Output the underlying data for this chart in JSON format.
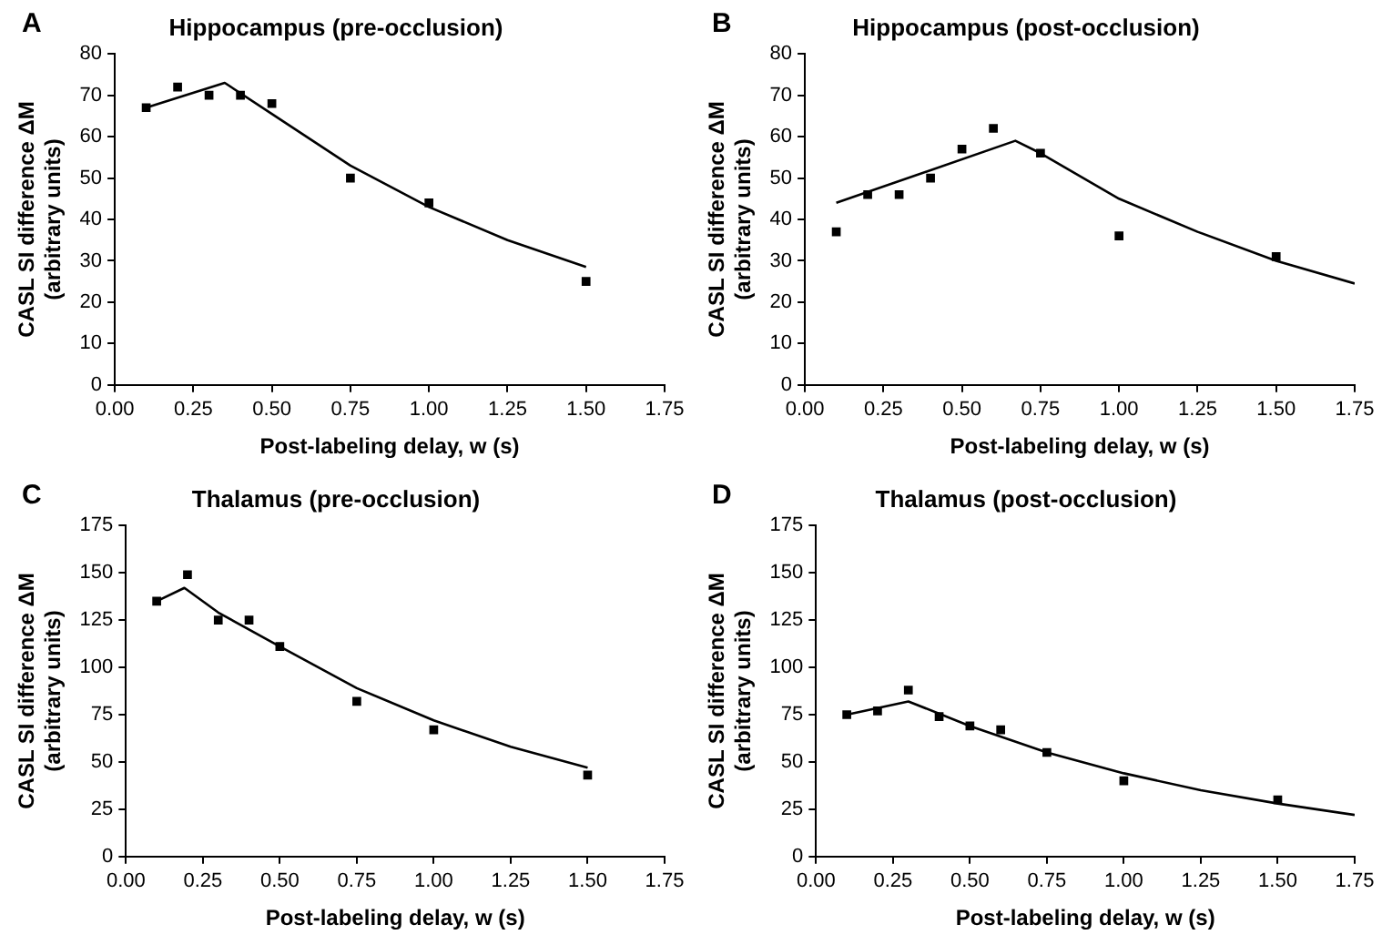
{
  "chart_data": [
    {
      "type": "scatter",
      "title": "Hippocampus (pre-occlusion)",
      "xlabel": "Post-labeling delay, w (s)",
      "ylabel": "CASL SI difference ΔM\n(arbitrary units)",
      "annotations": [
        "A"
      ],
      "xlim": [
        0,
        1.75
      ],
      "xticks": [
        {
          "value": 0,
          "label": "0.00"
        },
        {
          "value": 0.25,
          "label": "0.25"
        },
        {
          "value": 0.5,
          "label": "0.50"
        },
        {
          "value": 0.75,
          "label": "0.75"
        },
        {
          "value": 1,
          "label": "1.00"
        },
        {
          "value": 1.25,
          "label": "1.25"
        },
        {
          "value": 1.5,
          "label": "1.50"
        },
        {
          "value": 1.75,
          "label": "1.75"
        }
      ],
      "ylim": [
        0,
        80
      ],
      "yticks": [
        0,
        10,
        20,
        30,
        40,
        50,
        60,
        70,
        80
      ],
      "grid": false,
      "legend": false,
      "series": [
        {
          "type": "scatter",
          "marker": "square",
          "color": "#000000",
          "x": [
            0.1,
            0.2,
            0.3,
            0.4,
            0.5,
            0.75,
            1.0,
            1.5
          ],
          "values": [
            67,
            72,
            70,
            70,
            68,
            50,
            44,
            25
          ]
        },
        {
          "type": "line",
          "marker": "none",
          "line_style": "solid",
          "color": "#000000",
          "x": [
            0.1,
            0.35,
            0.5,
            0.75,
            1.0,
            1.25,
            1.5
          ],
          "values": [
            67,
            73,
            65.5,
            53,
            43,
            35,
            28.5
          ]
        }
      ]
    },
    {
      "type": "scatter",
      "title": "Hippocampus (post-occlusion)",
      "xlabel": "Post-labeling delay, w (s)",
      "ylabel": "CASL SI difference ΔM\n(arbitrary units)",
      "annotations": [
        "B"
      ],
      "xlim": [
        0,
        1.75
      ],
      "xticks": [
        {
          "value": 0,
          "label": "0.00"
        },
        {
          "value": 0.25,
          "label": "0.25"
        },
        {
          "value": 0.5,
          "label": "0.50"
        },
        {
          "value": 0.75,
          "label": "0.75"
        },
        {
          "value": 1,
          "label": "1.00"
        },
        {
          "value": 1.25,
          "label": "1.25"
        },
        {
          "value": 1.5,
          "label": "1.50"
        },
        {
          "value": 1.75,
          "label": "1.75"
        }
      ],
      "ylim": [
        0,
        80
      ],
      "yticks": [
        0,
        10,
        20,
        30,
        40,
        50,
        60,
        70,
        80
      ],
      "grid": false,
      "legend": false,
      "series": [
        {
          "type": "scatter",
          "marker": "square",
          "color": "#000000",
          "x": [
            0.1,
            0.2,
            0.3,
            0.4,
            0.5,
            0.6,
            0.75,
            1.0,
            1.5
          ],
          "values": [
            37,
            46,
            46,
            50,
            57,
            62,
            56,
            36,
            31
          ]
        },
        {
          "type": "line",
          "marker": "none",
          "line_style": "solid",
          "color": "#000000",
          "x": [
            0.1,
            0.67,
            0.75,
            1.0,
            1.25,
            1.5,
            1.75
          ],
          "values": [
            44,
            59,
            56,
            45,
            37,
            30,
            24.5
          ]
        }
      ]
    },
    {
      "type": "scatter",
      "title": "Thalamus (pre-occlusion)",
      "xlabel": "Post-labeling delay, w (s)",
      "ylabel": "CASL SI difference ΔM\n(arbitrary units)",
      "annotations": [
        "C"
      ],
      "xlim": [
        0,
        1.75
      ],
      "xticks": [
        {
          "value": 0,
          "label": "0.00"
        },
        {
          "value": 0.25,
          "label": "0.25"
        },
        {
          "value": 0.5,
          "label": "0.50"
        },
        {
          "value": 0.75,
          "label": "0.75"
        },
        {
          "value": 1,
          "label": "1.00"
        },
        {
          "value": 1.25,
          "label": "1.25"
        },
        {
          "value": 1.5,
          "label": "1.50"
        },
        {
          "value": 1.75,
          "label": "1.75"
        }
      ],
      "ylim": [
        0,
        175
      ],
      "yticks": [
        0,
        25,
        50,
        75,
        100,
        125,
        150,
        175
      ],
      "grid": false,
      "legend": false,
      "series": [
        {
          "type": "scatter",
          "marker": "square",
          "color": "#000000",
          "x": [
            0.1,
            0.2,
            0.3,
            0.4,
            0.5,
            0.75,
            1.0,
            1.5
          ],
          "values": [
            135,
            149,
            125,
            125,
            111,
            82,
            67,
            43
          ]
        },
        {
          "type": "line",
          "marker": "none",
          "line_style": "solid",
          "color": "#000000",
          "x": [
            0.1,
            0.19,
            0.3,
            0.5,
            0.75,
            1.0,
            1.25,
            1.5
          ],
          "values": [
            135,
            142,
            129,
            111,
            89,
            72,
            58,
            47
          ]
        }
      ]
    },
    {
      "type": "scatter",
      "title": "Thalamus (post-occlusion)",
      "xlabel": "Post-labeling delay, w (s)",
      "ylabel": "CASL SI difference ΔM\n(arbitrary units)",
      "annotations": [
        "D"
      ],
      "xlim": [
        0,
        1.75
      ],
      "xticks": [
        {
          "value": 0,
          "label": "0.00"
        },
        {
          "value": 0.25,
          "label": "0.25"
        },
        {
          "value": 0.5,
          "label": "0.50"
        },
        {
          "value": 0.75,
          "label": "0.75"
        },
        {
          "value": 1,
          "label": "1.00"
        },
        {
          "value": 1.25,
          "label": "1.25"
        },
        {
          "value": 1.5,
          "label": "1.50"
        },
        {
          "value": 1.75,
          "label": "1.75"
        }
      ],
      "ylim": [
        0,
        175
      ],
      "yticks": [
        0,
        25,
        50,
        75,
        100,
        125,
        150,
        175
      ],
      "grid": false,
      "legend": false,
      "series": [
        {
          "type": "scatter",
          "marker": "square",
          "color": "#000000",
          "x": [
            0.1,
            0.2,
            0.3,
            0.4,
            0.5,
            0.6,
            0.75,
            1.0,
            1.5
          ],
          "values": [
            75,
            77,
            88,
            74,
            69,
            67,
            55,
            40,
            30
          ]
        },
        {
          "type": "line",
          "marker": "none",
          "line_style": "solid",
          "color": "#000000",
          "x": [
            0.1,
            0.3,
            0.5,
            0.75,
            1.0,
            1.25,
            1.5,
            1.75
          ],
          "values": [
            75,
            82,
            69,
            55,
            44,
            35,
            28,
            22
          ]
        }
      ]
    }
  ]
}
